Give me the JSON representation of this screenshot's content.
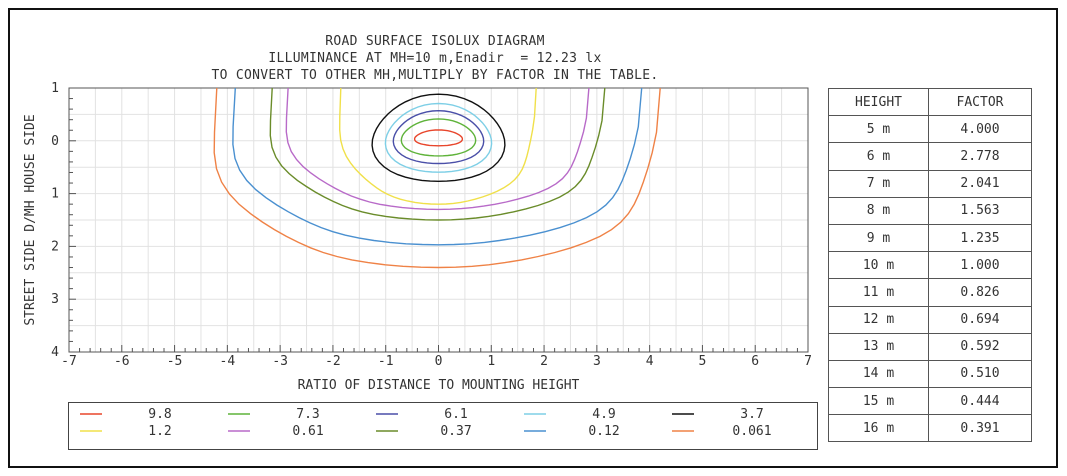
{
  "title": {
    "line1": "ROAD SURFACE ISOLUX DIAGRAM",
    "line2": "ILLUMINANCE AT MH=10 m,Enadir  = 12.23 lx",
    "line3": "TO CONVERT TO OTHER MH,MULTIPLY BY FACTOR IN THE TABLE."
  },
  "chart_data": {
    "type": "contour",
    "title": "ROAD SURFACE ISOLUX DIAGRAM",
    "xlabel": "RATIO OF DISTANCE TO MOUNTING HEIGHT",
    "ylabel": "STREET SIDE  D/MH  HOUSE SIDE",
    "xlim": [
      -7,
      7
    ],
    "ylim": [
      -1,
      4
    ],
    "y_axis_inverted": true,
    "x_ticks": [
      -7,
      -6,
      -5,
      -4,
      -3,
      -2,
      -1,
      0,
      1,
      2,
      3,
      4,
      5,
      6,
      7
    ],
    "y_tick_labels": [
      "1",
      "0",
      "1",
      "2",
      "3",
      "4"
    ],
    "y_tick_values": [
      -1,
      0,
      1,
      2,
      3,
      4
    ],
    "grid": true,
    "series": [
      {
        "name": "9.8",
        "color": "#e8462c",
        "half_width": 0.45,
        "top": -0.2,
        "bottom": 0.1
      },
      {
        "name": "7.3",
        "color": "#5fb33a",
        "half_width": 0.7,
        "top": -0.4,
        "bottom": 0.3
      },
      {
        "name": "6.1",
        "color": "#4a4fa8",
        "half_width": 0.85,
        "top": -0.55,
        "bottom": 0.45
      },
      {
        "name": "4.9",
        "color": "#7ecfe6",
        "half_width": 1.0,
        "top": -0.68,
        "bottom": 0.62
      },
      {
        "name": "3.7",
        "color": "#111111",
        "half_width": 1.25,
        "top": -0.85,
        "bottom": 0.8
      },
      {
        "name": "1.2",
        "color": "#f0e04a",
        "half_width": 1.85,
        "top": -1.0,
        "bottom": 1.2
      },
      {
        "name": "0.61",
        "color": "#b86ac8",
        "half_width": 2.85,
        "top": -1.0,
        "bottom": 1.3
      },
      {
        "name": "0.37",
        "color": "#6a8c2a",
        "half_width": 3.15,
        "top": -1.0,
        "bottom": 1.5
      },
      {
        "name": "0.12",
        "color": "#4a90d0",
        "half_width": 3.85,
        "top": -1.0,
        "bottom": 1.97
      },
      {
        "name": "0.061",
        "color": "#ef8246",
        "half_width": 4.2,
        "top": -1.0,
        "bottom": 2.4
      }
    ]
  },
  "factor_table": {
    "headers": [
      "HEIGHT",
      "FACTOR"
    ],
    "rows": [
      [
        "5 m",
        "4.000"
      ],
      [
        "6 m",
        "2.778"
      ],
      [
        "7 m",
        "2.041"
      ],
      [
        "8 m",
        "1.563"
      ],
      [
        "9 m",
        "1.235"
      ],
      [
        "10 m",
        "1.000"
      ],
      [
        "11 m",
        "0.826"
      ],
      [
        "12 m",
        "0.694"
      ],
      [
        "13 m",
        "0.592"
      ],
      [
        "14 m",
        "0.510"
      ],
      [
        "15 m",
        "0.444"
      ],
      [
        "16 m",
        "0.391"
      ]
    ]
  }
}
